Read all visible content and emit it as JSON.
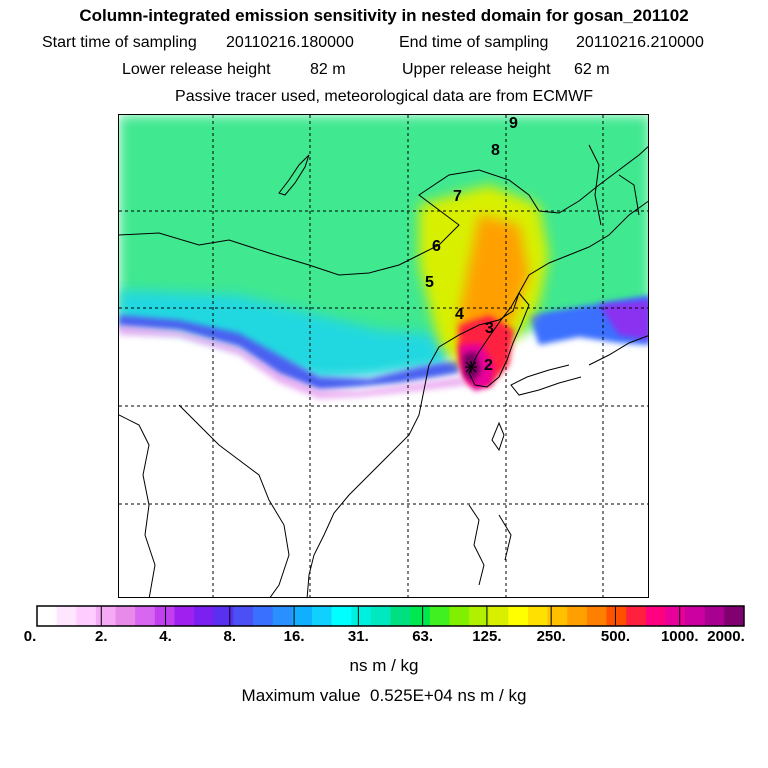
{
  "header": {
    "title": "Column-integrated emission sensitivity in nested domain for gosan_201102",
    "start_label": "Start time of sampling",
    "start_value": "20110216.180000",
    "end_label": "End time of sampling",
    "end_value": "20110216.210000",
    "lower_label": "Lower release height",
    "lower_value": "82 m",
    "upper_label": "Upper release height",
    "upper_value": "62 m",
    "info": "Passive tracer used, meteorological data are from ECMWF"
  },
  "chart_data": {
    "type": "heatmap",
    "title": "Column-integrated emission sensitivity in nested domain for gosan_201102",
    "colorbar": {
      "ticks": [
        "0.",
        "2.",
        "4.",
        "8.",
        "16.",
        "31.",
        "63.",
        "125.",
        "250.",
        "500.",
        "1000.",
        "2000."
      ],
      "colors": [
        "#ffffff",
        "#ffe6ff",
        "#ffccff",
        "#f5aaf5",
        "#e88ae8",
        "#d966f0",
        "#c040f0",
        "#a020f0",
        "#7a20f0",
        "#5a30f0",
        "#4a50f5",
        "#3a70ff",
        "#2a90ff",
        "#10b0ff",
        "#10d0ff",
        "#00ffff",
        "#00f0e0",
        "#00e8c0",
        "#00e080",
        "#00e850",
        "#40f020",
        "#80f000",
        "#b0f000",
        "#d8f000",
        "#ffff00",
        "#ffe000",
        "#ffc000",
        "#ffa000",
        "#ff8000",
        "#ff5000",
        "#ff2040",
        "#ff0080",
        "#e8009a",
        "#cc00a0",
        "#a80090",
        "#800070"
      ],
      "unit": "ns m / kg"
    },
    "maximum_label": "Maximum value",
    "maximum_value": "0.525E+04",
    "maximum_unit": "ns m / kg",
    "trajectory_labels": [
      "2",
      "3",
      "4",
      "5",
      "6",
      "7",
      "8",
      "9"
    ]
  }
}
